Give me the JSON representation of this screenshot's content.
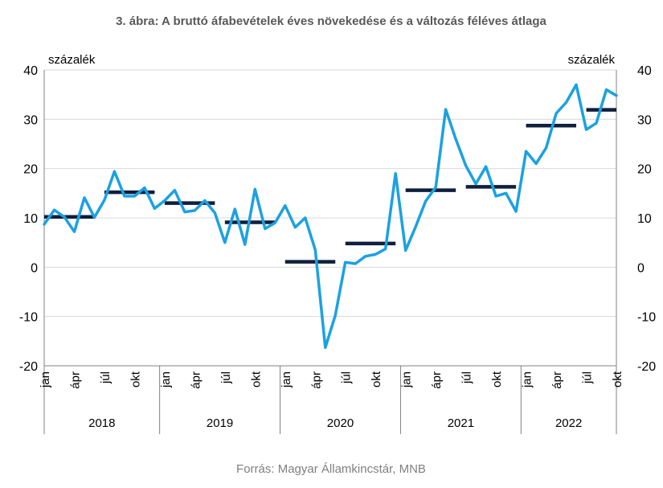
{
  "chart_data": {
    "type": "line",
    "title": "3. ábra: A bruttó áfabevételek éves növekedése és a változás féléves átlaga",
    "ylabel_left": "százalék",
    "ylabel_right": "százalék",
    "ylim": [
      -20,
      40
    ],
    "yticks": [
      -20,
      -10,
      0,
      10,
      20,
      30,
      40
    ],
    "years": [
      "2018",
      "2019",
      "2020",
      "2021",
      "2022"
    ],
    "month_labels": [
      "jan",
      "ápr",
      "júl",
      "okt"
    ],
    "month_label_index": [
      0,
      3,
      6,
      9
    ],
    "source": "Forrás: Magyar Államkincstár, MNB",
    "series": [
      {
        "color": "#1ba1e2",
        "values": [
          8.7,
          11.6,
          10.2,
          7.2,
          14.1,
          10.1,
          13.6,
          19.4,
          14.4,
          14.4,
          16.1,
          11.9,
          13.5,
          15.6,
          11.2,
          11.5,
          13.5,
          11.0,
          5.0,
          11.8,
          4.6,
          15.8,
          7.8,
          9.0,
          12.5,
          8.1,
          10.0,
          3.5,
          -16.3,
          -9.8,
          1.0,
          0.7,
          2.2,
          2.6,
          3.7,
          19.0,
          3.4,
          8.2,
          13.4,
          16.2,
          32.0,
          26.0,
          20.6,
          16.9,
          20.4,
          14.4,
          15.0,
          11.3,
          23.5,
          21.0,
          24.2,
          31.2,
          33.4,
          37.0,
          27.9,
          29.2,
          36.0,
          34.8
        ]
      },
      {
        "color": "#0f1f3d",
        "segments": [
          {
            "start": 0,
            "end": 5,
            "value": 10.2
          },
          {
            "start": 6,
            "end": 11,
            "value": 15.2
          },
          {
            "start": 12,
            "end": 17,
            "value": 13.0
          },
          {
            "start": 18,
            "end": 23,
            "value": 9.1
          },
          {
            "start": 24,
            "end": 29,
            "value": 1.1
          },
          {
            "start": 30,
            "end": 35,
            "value": 4.8
          },
          {
            "start": 36,
            "end": 41,
            "value": 15.6
          },
          {
            "start": 42,
            "end": 47,
            "value": 16.3
          },
          {
            "start": 48,
            "end": 53,
            "value": 28.7
          },
          {
            "start": 54,
            "end": 57,
            "value": 31.9
          }
        ]
      }
    ],
    "grid": true
  }
}
